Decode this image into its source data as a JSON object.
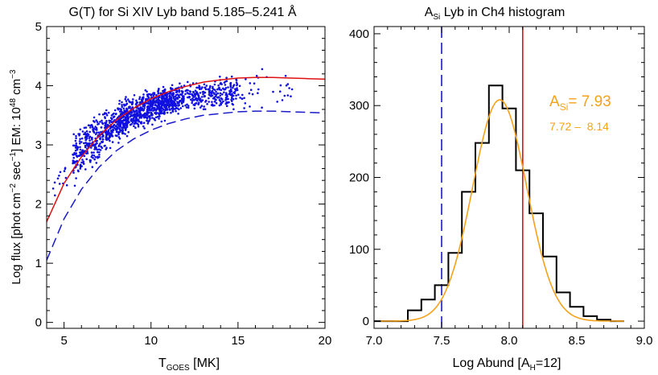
{
  "chart_data": [
    {
      "type": "scatter",
      "title": "G(T) for Si XIV Lyb band 5.185–5.241 Å",
      "xlabel": {
        "main": "T",
        "sub": "GOES",
        "tail": " [MK]"
      },
      "ylabel": {
        "p1": "Log flux  [phot cm",
        "s1": "−2",
        "p2": " sec",
        "s2": "−1",
        "p3": "] EM: 10",
        "s3": "48",
        "p4": " cm",
        "s4": "−3"
      },
      "xlim": [
        4,
        20
      ],
      "ylim": [
        -0.1,
        5
      ],
      "xticks": [
        5,
        10,
        15,
        20
      ],
      "yticks": [
        0,
        1,
        2,
        3,
        4,
        5
      ],
      "colors": {
        "points": "#1010e0",
        "solid_curve": "#e01010",
        "dashed_curve": "#1a1acc"
      },
      "scatter_trend": {
        "x": [
          4.5,
          5.5,
          6.5,
          7.5,
          8.5,
          9.5,
          10.5,
          11.5,
          12.5,
          13.5,
          14.5,
          16.0,
          18.0
        ],
        "y": [
          2.25,
          2.75,
          3.05,
          3.25,
          3.45,
          3.6,
          3.7,
          3.78,
          3.83,
          3.85,
          3.88,
          3.9,
          3.9
        ],
        "spread": [
          0.25,
          0.35,
          0.35,
          0.3,
          0.28,
          0.25,
          0.25,
          0.22,
          0.22,
          0.22,
          0.25,
          0.3,
          0.3
        ],
        "n_points": 1500
      },
      "series": [
        {
          "style": "solid",
          "x": [
            4,
            5,
            6,
            7,
            8,
            9,
            10,
            11,
            12,
            13,
            14,
            15,
            16,
            17,
            18,
            19,
            20
          ],
          "y": [
            1.7,
            2.35,
            2.8,
            3.15,
            3.42,
            3.62,
            3.78,
            3.9,
            3.99,
            4.06,
            4.1,
            4.13,
            4.14,
            4.14,
            4.13,
            4.12,
            4.11
          ]
        },
        {
          "style": "dashed",
          "x": [
            4,
            5,
            6,
            7,
            8,
            9,
            10,
            11,
            12,
            13,
            14,
            15,
            16,
            17,
            18,
            19,
            20
          ],
          "y": [
            1.05,
            1.75,
            2.25,
            2.62,
            2.9,
            3.1,
            3.25,
            3.36,
            3.44,
            3.5,
            3.53,
            3.56,
            3.57,
            3.57,
            3.56,
            3.55,
            3.54
          ]
        }
      ]
    },
    {
      "type": "bar",
      "title": {
        "main": "A",
        "sub": "Si",
        "tail": " Lyb in Ch4 histogram"
      },
      "xlabel": {
        "main": "Log Abund [A",
        "sub": "H",
        "tail": "=12]"
      },
      "ylabel": "",
      "xlim": [
        7.0,
        9.0
      ],
      "ylim": [
        -10,
        410
      ],
      "xticks": [
        7.0,
        7.5,
        8.0,
        8.5,
        9.0
      ],
      "yticks": [
        0,
        100,
        200,
        300,
        400
      ],
      "bin_width": 0.1,
      "bins": [
        {
          "x0": 7.0,
          "count": 0
        },
        {
          "x0": 7.1,
          "count": 0
        },
        {
          "x0": 7.2,
          "count": 0
        },
        {
          "x0": 7.25,
          "count": 15
        },
        {
          "x0": 7.35,
          "count": 30
        },
        {
          "x0": 7.45,
          "count": 50
        },
        {
          "x0": 7.55,
          "count": 95
        },
        {
          "x0": 7.65,
          "count": 180
        },
        {
          "x0": 7.75,
          "count": 248
        },
        {
          "x0": 7.85,
          "count": 328
        },
        {
          "x0": 7.95,
          "count": 296
        },
        {
          "x0": 8.05,
          "count": 210
        },
        {
          "x0": 8.15,
          "count": 150
        },
        {
          "x0": 8.25,
          "count": 90
        },
        {
          "x0": 8.35,
          "count": 40
        },
        {
          "x0": 8.45,
          "count": 20
        },
        {
          "x0": 8.55,
          "count": 7
        },
        {
          "x0": 8.65,
          "count": 2
        },
        {
          "x0": 8.75,
          "count": 0
        }
      ],
      "gaussian_fit": {
        "mean": 7.93,
        "sigma": 0.2,
        "peak": 308
      },
      "vlines": [
        {
          "x": 7.5,
          "style": "dashed",
          "color": "#1a1acc"
        },
        {
          "x": 8.1,
          "style": "solid",
          "color": "#e01010"
        }
      ],
      "annotation": {
        "main": "A",
        "sub": "Si",
        "tail": "= 7.93",
        "range": "7.72 –  8.14",
        "color": "#f5a21a"
      }
    }
  ]
}
